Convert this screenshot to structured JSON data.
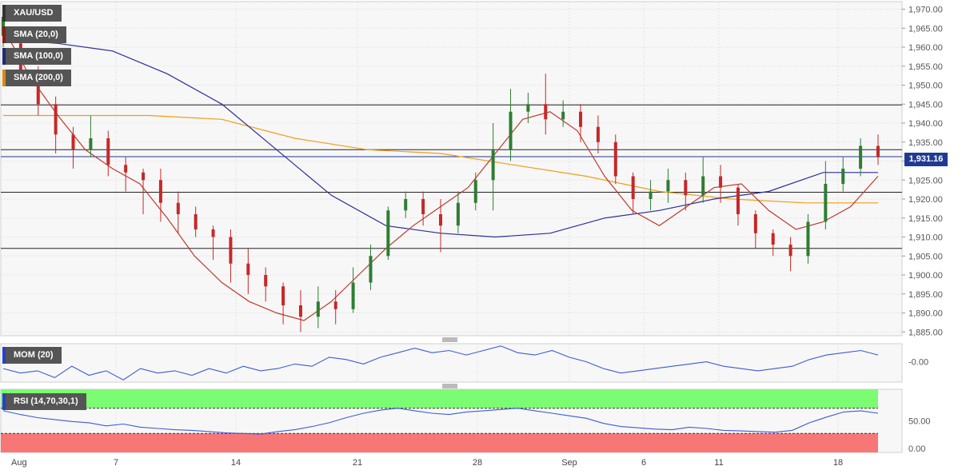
{
  "legend": {
    "symbol": "XAU/USD",
    "sma20": "SMA (20,0)",
    "sma100": "SMA (100,0)",
    "sma200": "SMA (200,0)",
    "mom": "MOM (20)",
    "rsi": "RSI (14,70,30,1)"
  },
  "colors": {
    "up": "#2e7d32",
    "down": "#c62828",
    "sma20": "#c0392b",
    "sma100": "#2c2c9e",
    "sma200": "#f39c12",
    "mom": "#3b5bdb",
    "rsi_overbought": "#7cfc72",
    "rsi_oversold": "#f77777"
  },
  "chart_data": [
    {
      "type": "candlestick",
      "symbol": "XAU/USD",
      "ylim": [
        1884,
        1972
      ],
      "y_ticks": [
        "1,970.00",
        "1,965.00",
        "1,960.00",
        "1,955.00",
        "1,950.00",
        "1,945.00",
        "1,940.00",
        "1,935.00",
        "1,930.00",
        "1,925.00",
        "1,920.00",
        "1,915.00",
        "1,910.00",
        "1,905.00",
        "1,900.00",
        "1,895.00",
        "1,890.00",
        "1,885.00"
      ],
      "x_ticks": [
        "Aug",
        "7",
        "14",
        "21",
        "28",
        "Sep",
        "6",
        "11",
        "18"
      ],
      "last_price": "1,931.16",
      "last_price_value": 1931.16,
      "horizontal_levels": [
        1944.8,
        1933.0,
        1921.8,
        1907.0
      ],
      "sma20": [
        1965,
        1952,
        1942,
        1933,
        1928,
        1924,
        1915,
        1905,
        1898,
        1893,
        1890,
        1888,
        1893,
        1900,
        1907,
        1913,
        1918,
        1923,
        1932,
        1941,
        1943,
        1938,
        1926,
        1917,
        1913,
        1918,
        1923,
        1924,
        1917,
        1912,
        1914,
        1918,
        1926
      ],
      "sma100": [
        1962,
        1961,
        1959,
        1953,
        1945,
        1933,
        1921,
        1913,
        1911,
        1910,
        1911,
        1915,
        1917,
        1920,
        1922,
        1927,
        1927
      ],
      "sma200": [
        1942,
        1942,
        1942,
        1941,
        1936,
        1933,
        1932,
        1929,
        1926,
        1922,
        1920,
        1919,
        1919
      ],
      "candles": [
        [
          1963,
          1968,
          1960,
          1970
        ],
        [
          1961,
          1953,
          1950,
          1964
        ],
        [
          1953,
          1945,
          1942,
          1955
        ],
        [
          1945,
          1937,
          1932,
          1947
        ],
        [
          1937,
          1933,
          1928,
          1939
        ],
        [
          1933,
          1936,
          1931,
          1942
        ],
        [
          1936,
          1929,
          1926,
          1938
        ],
        [
          1929,
          1927,
          1922,
          1931
        ],
        [
          1927,
          1925,
          1916,
          1928
        ],
        [
          1925,
          1919,
          1914,
          1928
        ],
        [
          1919,
          1916,
          1911,
          1922
        ],
        [
          1916,
          1912,
          1910,
          1918
        ],
        [
          1912,
          1910,
          1904,
          1913
        ],
        [
          1910,
          1903,
          1898,
          1912
        ],
        [
          1903,
          1900,
          1895,
          1907
        ],
        [
          1900,
          1897,
          1893,
          1902
        ],
        [
          1897,
          1892,
          1887,
          1898
        ],
        [
          1892,
          1889,
          1885,
          1896
        ],
        [
          1889,
          1893,
          1886,
          1897
        ],
        [
          1893,
          1891,
          1887,
          1896
        ],
        [
          1891,
          1898,
          1890,
          1902
        ],
        [
          1898,
          1905,
          1896,
          1908
        ],
        [
          1905,
          1917,
          1904,
          1918
        ],
        [
          1917,
          1920,
          1915,
          1922
        ],
        [
          1920,
          1916,
          1913,
          1922
        ],
        [
          1916,
          1913,
          1906,
          1920
        ],
        [
          1913,
          1919,
          1911,
          1922
        ],
        [
          1919,
          1925,
          1917,
          1927
        ],
        [
          1925,
          1933,
          1917,
          1940
        ],
        [
          1933,
          1943,
          1930,
          1949
        ],
        [
          1943,
          1945,
          1940,
          1948
        ],
        [
          1945,
          1941,
          1937,
          1953
        ],
        [
          1941,
          1943,
          1939,
          1946
        ],
        [
          1943,
          1939,
          1935,
          1945
        ],
        [
          1939,
          1935,
          1932,
          1942
        ],
        [
          1935,
          1926,
          1924,
          1937
        ],
        [
          1926,
          1920,
          1916,
          1927
        ],
        [
          1920,
          1922,
          1917,
          1925
        ],
        [
          1922,
          1925,
          1919,
          1928
        ],
        [
          1925,
          1921,
          1917,
          1927
        ],
        [
          1921,
          1926,
          1919,
          1931
        ],
        [
          1926,
          1923,
          1919,
          1929
        ],
        [
          1923,
          1916,
          1913,
          1924
        ],
        [
          1916,
          1911,
          1907,
          1917
        ],
        [
          1911,
          1908,
          1905,
          1912
        ],
        [
          1908,
          1905,
          1901,
          1910
        ],
        [
          1905,
          1914,
          1903,
          1916
        ],
        [
          1914,
          1924,
          1912,
          1930
        ],
        [
          1924,
          1928,
          1922,
          1931
        ],
        [
          1928,
          1934,
          1926,
          1936
        ],
        [
          1934,
          1931,
          1929,
          1937
        ]
      ]
    },
    {
      "type": "line",
      "name": "MOM (20)",
      "y_ticks": [
        "-0.00"
      ],
      "values": [
        -3,
        -5,
        -4,
        -7,
        -2,
        -6,
        -4,
        -8,
        -3,
        -5,
        -4,
        -6,
        -3,
        -5,
        -2,
        -4,
        -3,
        -1,
        -2,
        2,
        1,
        -1,
        2,
        4,
        6,
        4,
        5,
        3,
        5,
        7,
        4,
        3,
        5,
        2,
        0,
        -3,
        -5,
        -4,
        -3,
        -2,
        -1,
        0,
        -2,
        -3,
        -4,
        -3,
        -2,
        1,
        3,
        4,
        5,
        3
      ]
    },
    {
      "type": "line",
      "name": "RSI (14,70,30,1)",
      "y_ticks": [
        "50.00",
        "0.00"
      ],
      "ylim": [
        0,
        100
      ],
      "levels": [
        70,
        30
      ],
      "values": [
        66,
        60,
        55,
        52,
        49,
        47,
        42,
        45,
        40,
        38,
        36,
        35,
        33,
        31,
        30,
        29,
        33,
        36,
        41,
        47,
        55,
        62,
        67,
        70,
        66,
        62,
        60,
        64,
        66,
        68,
        70,
        66,
        62,
        58,
        54,
        46,
        41,
        39,
        37,
        36,
        40,
        38,
        35,
        34,
        33,
        32,
        35,
        47,
        56,
        64,
        66,
        62
      ]
    }
  ]
}
